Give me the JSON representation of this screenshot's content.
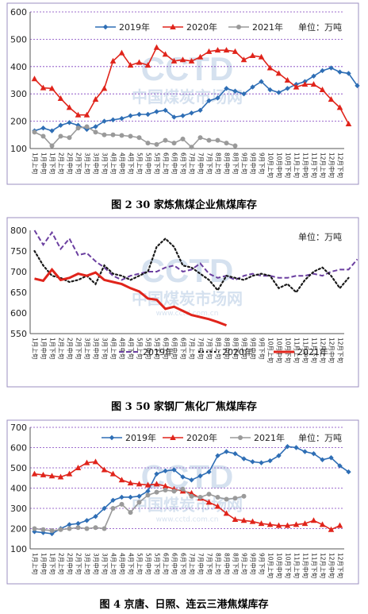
{
  "month_labels": [
    "1月",
    "2月",
    "3月",
    "4月",
    "5月",
    "6月",
    "7月",
    "8月",
    "9月",
    "10月",
    "11月",
    "12月"
  ],
  "period_labels": [
    "上旬",
    "中旬",
    "下旬"
  ],
  "charts": [
    {
      "caption": "图 2  30 家炼焦煤企业焦煤库存",
      "unit": "单位：万吨",
      "watermark": "CCTD",
      "watermark_cn": "中国煤炭市场网",
      "ylim": [
        100,
        600
      ],
      "yticks": [
        100,
        200,
        300,
        400,
        500,
        600
      ],
      "legend_pos": "top",
      "colors": {
        "frame": "#9b8fc2",
        "grid": "#7f3fbf"
      }
    },
    {
      "caption": "图 3  50 家钢厂焦化厂焦煤库存",
      "unit": "单位：万吨",
      "watermark": "CCTD",
      "watermark_cn": "中国煤炭市场网",
      "watermark_url": "www.cctd.com.cn",
      "ylim": [
        550,
        800
      ],
      "yticks": [
        550,
        600,
        650,
        700,
        750,
        800
      ],
      "legend_pos": "bottom",
      "colors": {
        "frame": "#9b8fc2",
        "grid": "#ffffff"
      }
    },
    {
      "caption": "图 4  京唐、日照、连云三港焦煤库存",
      "unit": "单位：万吨",
      "watermark": "CCTD",
      "watermark_cn": "中国煤炭市场网",
      "watermark_url": "www.cctd.com.cn",
      "ylim": [
        100,
        700
      ],
      "yticks": [
        100,
        200,
        300,
        400,
        500,
        600,
        700
      ],
      "legend_pos": "top",
      "colors": {
        "frame": "#9b8fc2",
        "grid": "#7f3fbf"
      }
    }
  ],
  "chart_data": [
    {
      "type": "line",
      "title": "30 家炼焦煤企业焦煤库存",
      "ylabel": "单位：万吨",
      "ylim": [
        100,
        600
      ],
      "series": [
        {
          "name": "2019年",
          "color": "#2e6eb5",
          "marker": "diamond",
          "values": [
            165,
            175,
            165,
            185,
            195,
            185,
            170,
            180,
            200,
            205,
            210,
            220,
            225,
            225,
            235,
            240,
            215,
            220,
            230,
            240,
            275,
            285,
            320,
            310,
            300,
            325,
            345,
            315,
            305,
            320,
            335,
            345,
            365,
            385,
            395,
            380,
            375,
            330
          ]
        },
        {
          "name": "2020年",
          "color": "#e0241b",
          "marker": "triangle",
          "values": [
            355,
            322,
            320,
            283,
            250,
            223,
            223,
            280,
            320,
            420,
            450,
            405,
            415,
            405,
            470,
            445,
            420,
            425,
            420,
            435,
            455,
            460,
            460,
            455,
            425,
            440,
            435,
            395,
            375,
            350,
            325,
            335,
            335,
            315,
            280,
            250,
            190
          ]
        },
        {
          "name": "2021年",
          "color": "#9a9a9a",
          "marker": "circle",
          "values": [
            160,
            145,
            110,
            145,
            140,
            175,
            180,
            160,
            150,
            150,
            148,
            145,
            140,
            120,
            115,
            130,
            120,
            135,
            105,
            140,
            130,
            130,
            120,
            110
          ]
        }
      ]
    },
    {
      "type": "line",
      "title": "50 家钢厂焦化厂焦煤库存",
      "ylabel": "单位：万吨",
      "ylim": [
        550,
        800
      ],
      "series": [
        {
          "name": "2019年",
          "color": "#6b3fa0",
          "style": "dashed",
          "values": [
            800,
            765,
            795,
            755,
            780,
            740,
            745,
            725,
            710,
            690,
            680,
            690,
            695,
            700,
            700,
            710,
            715,
            700,
            705,
            720,
            695,
            685,
            690,
            680,
            690,
            695,
            690,
            690,
            685,
            685,
            690,
            690,
            695,
            690,
            700,
            705,
            705,
            730
          ]
        },
        {
          "name": "2020年",
          "color": "#1a1a1a",
          "style": "dotted",
          "values": [
            750,
            715,
            690,
            685,
            675,
            680,
            690,
            670,
            715,
            695,
            690,
            680,
            690,
            700,
            760,
            780,
            760,
            715,
            710,
            695,
            680,
            655,
            690,
            685,
            680,
            690,
            695,
            690,
            660,
            670,
            650,
            680,
            700,
            710,
            690,
            660,
            685
          ]
        },
        {
          "name": "2021年",
          "color": "#e0241b",
          "style": "solid",
          "values": [
            683,
            678,
            705,
            680,
            685,
            695,
            690,
            698,
            680,
            675,
            670,
            660,
            652,
            635,
            632,
            610,
            615,
            605,
            595,
            590,
            585,
            578,
            570
          ]
        }
      ]
    },
    {
      "type": "line",
      "title": "京唐、日照、连云三港焦煤库存",
      "ylabel": "单位：万吨",
      "ylim": [
        100,
        700
      ],
      "series": [
        {
          "name": "2019年",
          "color": "#2e6eb5",
          "marker": "diamond",
          "values": [
            185,
            180,
            175,
            200,
            220,
            225,
            240,
            260,
            300,
            340,
            355,
            355,
            360,
            385,
            470,
            485,
            490,
            455,
            440,
            460,
            480,
            560,
            580,
            570,
            545,
            530,
            525,
            535,
            560,
            605,
            600,
            580,
            570,
            540,
            550,
            510,
            480
          ]
        },
        {
          "name": "2020年",
          "color": "#e0241b",
          "marker": "triangle",
          "values": [
            470,
            465,
            460,
            455,
            470,
            500,
            525,
            530,
            490,
            470,
            440,
            425,
            420,
            415,
            420,
            410,
            395,
            385,
            375,
            350,
            330,
            310,
            275,
            245,
            240,
            235,
            225,
            220,
            215,
            215,
            220,
            225,
            240,
            220,
            195,
            215
          ]
        },
        {
          "name": "2021年",
          "color": "#9a9a9a",
          "marker": "circle",
          "values": [
            200,
            195,
            190,
            195,
            200,
            205,
            200,
            205,
            200,
            300,
            320,
            280,
            330,
            365,
            380,
            390,
            385,
            395,
            360,
            355,
            370,
            355,
            345,
            350,
            360
          ]
        }
      ]
    }
  ]
}
